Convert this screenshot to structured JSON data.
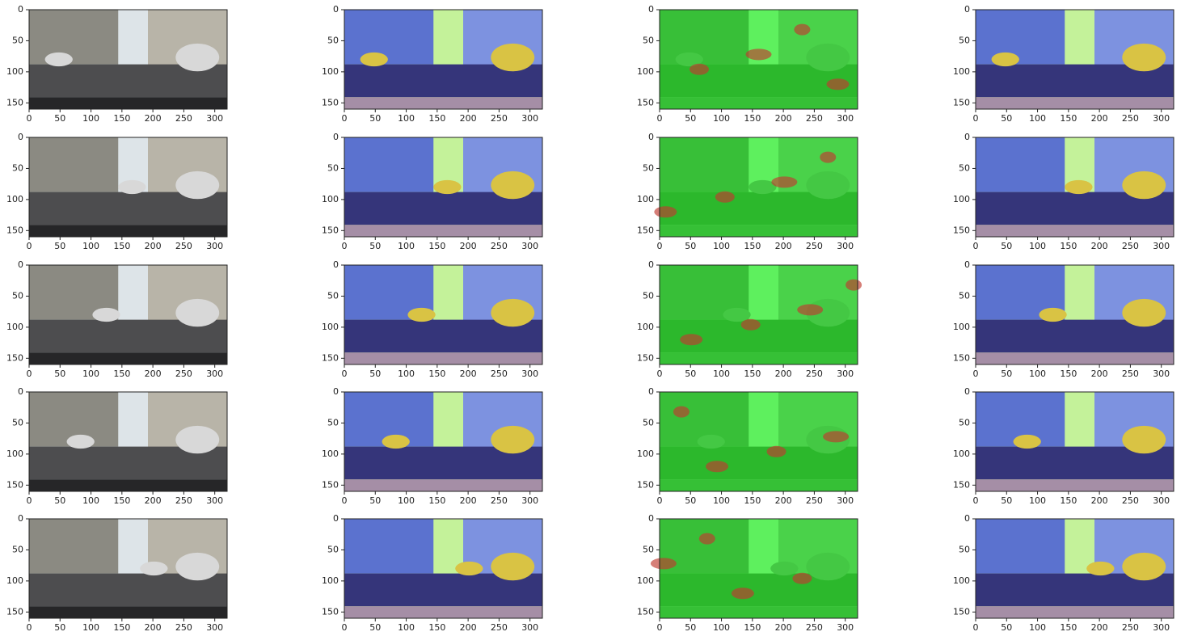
{
  "chart_data": [
    {
      "type": "image",
      "xlim": [
        0,
        320
      ],
      "ylim": [
        160,
        0
      ],
      "xticks": [
        0,
        50,
        100,
        150,
        200,
        250,
        300
      ],
      "yticks": [
        0,
        50,
        100,
        150
      ]
    },
    {
      "type": "image",
      "xlim": [
        0,
        320
      ],
      "ylim": [
        160,
        0
      ],
      "xticks": [
        0,
        50,
        100,
        150,
        200,
        250,
        300
      ],
      "yticks": [
        0,
        50,
        100,
        150
      ]
    },
    {
      "type": "image",
      "xlim": [
        0,
        320
      ],
      "ylim": [
        160,
        0
      ],
      "xticks": [
        0,
        50,
        100,
        150,
        200,
        250,
        300
      ],
      "yticks": [
        0,
        50,
        100,
        150
      ]
    },
    {
      "type": "image",
      "xlim": [
        0,
        320
      ],
      "ylim": [
        160,
        0
      ],
      "xticks": [
        0,
        50,
        100,
        150,
        200,
        250,
        300
      ],
      "yticks": [
        0,
        50,
        100,
        150
      ]
    },
    {
      "type": "image",
      "xlim": [
        0,
        320
      ],
      "ylim": [
        160,
        0
      ],
      "xticks": [
        0,
        50,
        100,
        150,
        200,
        250,
        300
      ],
      "yticks": [
        0,
        50,
        100,
        150
      ]
    },
    {
      "type": "image",
      "xlim": [
        0,
        320
      ],
      "ylim": [
        160,
        0
      ],
      "xticks": [
        0,
        50,
        100,
        150,
        200,
        250,
        300
      ],
      "yticks": [
        0,
        50,
        100,
        150
      ]
    },
    {
      "type": "image",
      "xlim": [
        0,
        320
      ],
      "ylim": [
        160,
        0
      ],
      "xticks": [
        0,
        50,
        100,
        150,
        200,
        250,
        300
      ],
      "yticks": [
        0,
        50,
        100,
        150
      ]
    },
    {
      "type": "image",
      "xlim": [
        0,
        320
      ],
      "ylim": [
        160,
        0
      ],
      "xticks": [
        0,
        50,
        100,
        150,
        200,
        250,
        300
      ],
      "yticks": [
        0,
        50,
        100,
        150
      ]
    },
    {
      "type": "image",
      "xlim": [
        0,
        320
      ],
      "ylim": [
        160,
        0
      ],
      "xticks": [
        0,
        50,
        100,
        150,
        200,
        250,
        300
      ],
      "yticks": [
        0,
        50,
        100,
        150
      ]
    },
    {
      "type": "image",
      "xlim": [
        0,
        320
      ],
      "ylim": [
        160,
        0
      ],
      "xticks": [
        0,
        50,
        100,
        150,
        200,
        250,
        300
      ],
      "yticks": [
        0,
        50,
        100,
        150
      ]
    },
    {
      "type": "image",
      "xlim": [
        0,
        320
      ],
      "ylim": [
        160,
        0
      ],
      "xticks": [
        0,
        50,
        100,
        150,
        200,
        250,
        300
      ],
      "yticks": [
        0,
        50,
        100,
        150
      ]
    },
    {
      "type": "image",
      "xlim": [
        0,
        320
      ],
      "ylim": [
        160,
        0
      ],
      "xticks": [
        0,
        50,
        100,
        150,
        200,
        250,
        300
      ],
      "yticks": [
        0,
        50,
        100,
        150
      ]
    },
    {
      "type": "image",
      "xlim": [
        0,
        320
      ],
      "ylim": [
        160,
        0
      ],
      "xticks": [
        0,
        50,
        100,
        150,
        200,
        250,
        300
      ],
      "yticks": [
        0,
        50,
        100,
        150
      ]
    },
    {
      "type": "image",
      "xlim": [
        0,
        320
      ],
      "ylim": [
        160,
        0
      ],
      "xticks": [
        0,
        50,
        100,
        150,
        200,
        250,
        300
      ],
      "yticks": [
        0,
        50,
        100,
        150
      ]
    },
    {
      "type": "image",
      "xlim": [
        0,
        320
      ],
      "ylim": [
        160,
        0
      ],
      "xticks": [
        0,
        50,
        100,
        150,
        200,
        250,
        300
      ],
      "yticks": [
        0,
        50,
        100,
        150
      ]
    },
    {
      "type": "image",
      "xlim": [
        0,
        320
      ],
      "ylim": [
        160,
        0
      ],
      "xticks": [
        0,
        50,
        100,
        150,
        200,
        250,
        300
      ],
      "yticks": [
        0,
        50,
        100,
        150
      ]
    },
    {
      "type": "image",
      "xlim": [
        0,
        320
      ],
      "ylim": [
        160,
        0
      ],
      "xticks": [
        0,
        50,
        100,
        150,
        200,
        250,
        300
      ],
      "yticks": [
        0,
        50,
        100,
        150
      ]
    },
    {
      "type": "image",
      "xlim": [
        0,
        320
      ],
      "ylim": [
        160,
        0
      ],
      "xticks": [
        0,
        50,
        100,
        150,
        200,
        250,
        300
      ],
      "yticks": [
        0,
        50,
        100,
        150
      ]
    },
    {
      "type": "image",
      "xlim": [
        0,
        320
      ],
      "ylim": [
        160,
        0
      ],
      "xticks": [
        0,
        50,
        100,
        150,
        200,
        250,
        300
      ],
      "yticks": [
        0,
        50,
        100,
        150
      ]
    },
    {
      "type": "image",
      "xlim": [
        0,
        320
      ],
      "ylim": [
        160,
        0
      ],
      "xticks": [
        0,
        50,
        100,
        150,
        200,
        250,
        300
      ],
      "yticks": [
        0,
        50,
        100,
        150
      ]
    }
  ]
}
